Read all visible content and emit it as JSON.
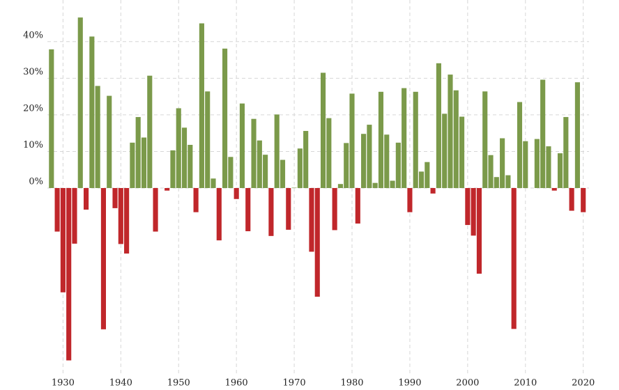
{
  "chart_data": {
    "type": "bar",
    "x": [
      1928,
      1929,
      1930,
      1931,
      1932,
      1933,
      1934,
      1935,
      1936,
      1937,
      1938,
      1939,
      1940,
      1941,
      1942,
      1943,
      1944,
      1945,
      1946,
      1947,
      1948,
      1949,
      1950,
      1951,
      1952,
      1953,
      1954,
      1955,
      1956,
      1957,
      1958,
      1959,
      1960,
      1961,
      1962,
      1963,
      1964,
      1965,
      1966,
      1967,
      1968,
      1969,
      1970,
      1971,
      1972,
      1973,
      1974,
      1975,
      1976,
      1977,
      1978,
      1979,
      1980,
      1981,
      1982,
      1983,
      1984,
      1985,
      1986,
      1987,
      1988,
      1989,
      1990,
      1991,
      1992,
      1993,
      1994,
      1995,
      1996,
      1997,
      1998,
      1999,
      2000,
      2001,
      2002,
      2003,
      2004,
      2005,
      2006,
      2007,
      2008,
      2009,
      2010,
      2011,
      2012,
      2013,
      2014,
      2015,
      2016,
      2017,
      2018,
      2019,
      2020
    ],
    "values": [
      37.9,
      -11.9,
      -28.5,
      -47.1,
      -15.2,
      46.6,
      -5.9,
      41.4,
      27.9,
      -38.6,
      25.2,
      -5.5,
      -15.3,
      -17.9,
      12.4,
      19.4,
      13.8,
      30.7,
      -11.9,
      0.0,
      -0.7,
      10.3,
      21.8,
      16.5,
      11.8,
      -6.6,
      45.0,
      26.4,
      2.6,
      -14.3,
      38.1,
      8.5,
      -3.0,
      23.1,
      -11.8,
      18.9,
      13.0,
      9.1,
      -13.1,
      20.1,
      7.7,
      -11.4,
      0.1,
      10.8,
      15.6,
      -17.4,
      -29.7,
      31.5,
      19.1,
      -11.5,
      1.1,
      12.3,
      25.8,
      -9.7,
      14.8,
      17.3,
      1.4,
      26.3,
      14.6,
      2.0,
      12.4,
      27.3,
      -6.6,
      26.3,
      4.5,
      7.1,
      -1.5,
      34.1,
      20.3,
      31.0,
      26.7,
      19.5,
      -10.1,
      -13.0,
      -23.4,
      26.4,
      9.0,
      3.0,
      13.6,
      3.5,
      -38.5,
      23.5,
      12.8,
      0.0,
      13.4,
      29.6,
      11.4,
      -0.7,
      9.5,
      19.4,
      -6.2,
      28.9,
      -6.6
    ],
    "color_positive": "#7b9a4a",
    "color_negative": "#c0272b",
    "xlim": [
      1927.3,
      2021
    ],
    "xticks": [
      1930,
      1940,
      1950,
      1960,
      1970,
      1980,
      1990,
      2000,
      2010,
      2020
    ],
    "ylim": [
      -51,
      51
    ],
    "yticks": [
      {
        "value": 0,
        "label": "0%"
      },
      {
        "value": 10,
        "label": "10%"
      },
      {
        "value": 20,
        "label": "20%"
      },
      {
        "value": 30,
        "label": "30%"
      },
      {
        "value": 40,
        "label": "40%"
      }
    ],
    "grid": true
  }
}
